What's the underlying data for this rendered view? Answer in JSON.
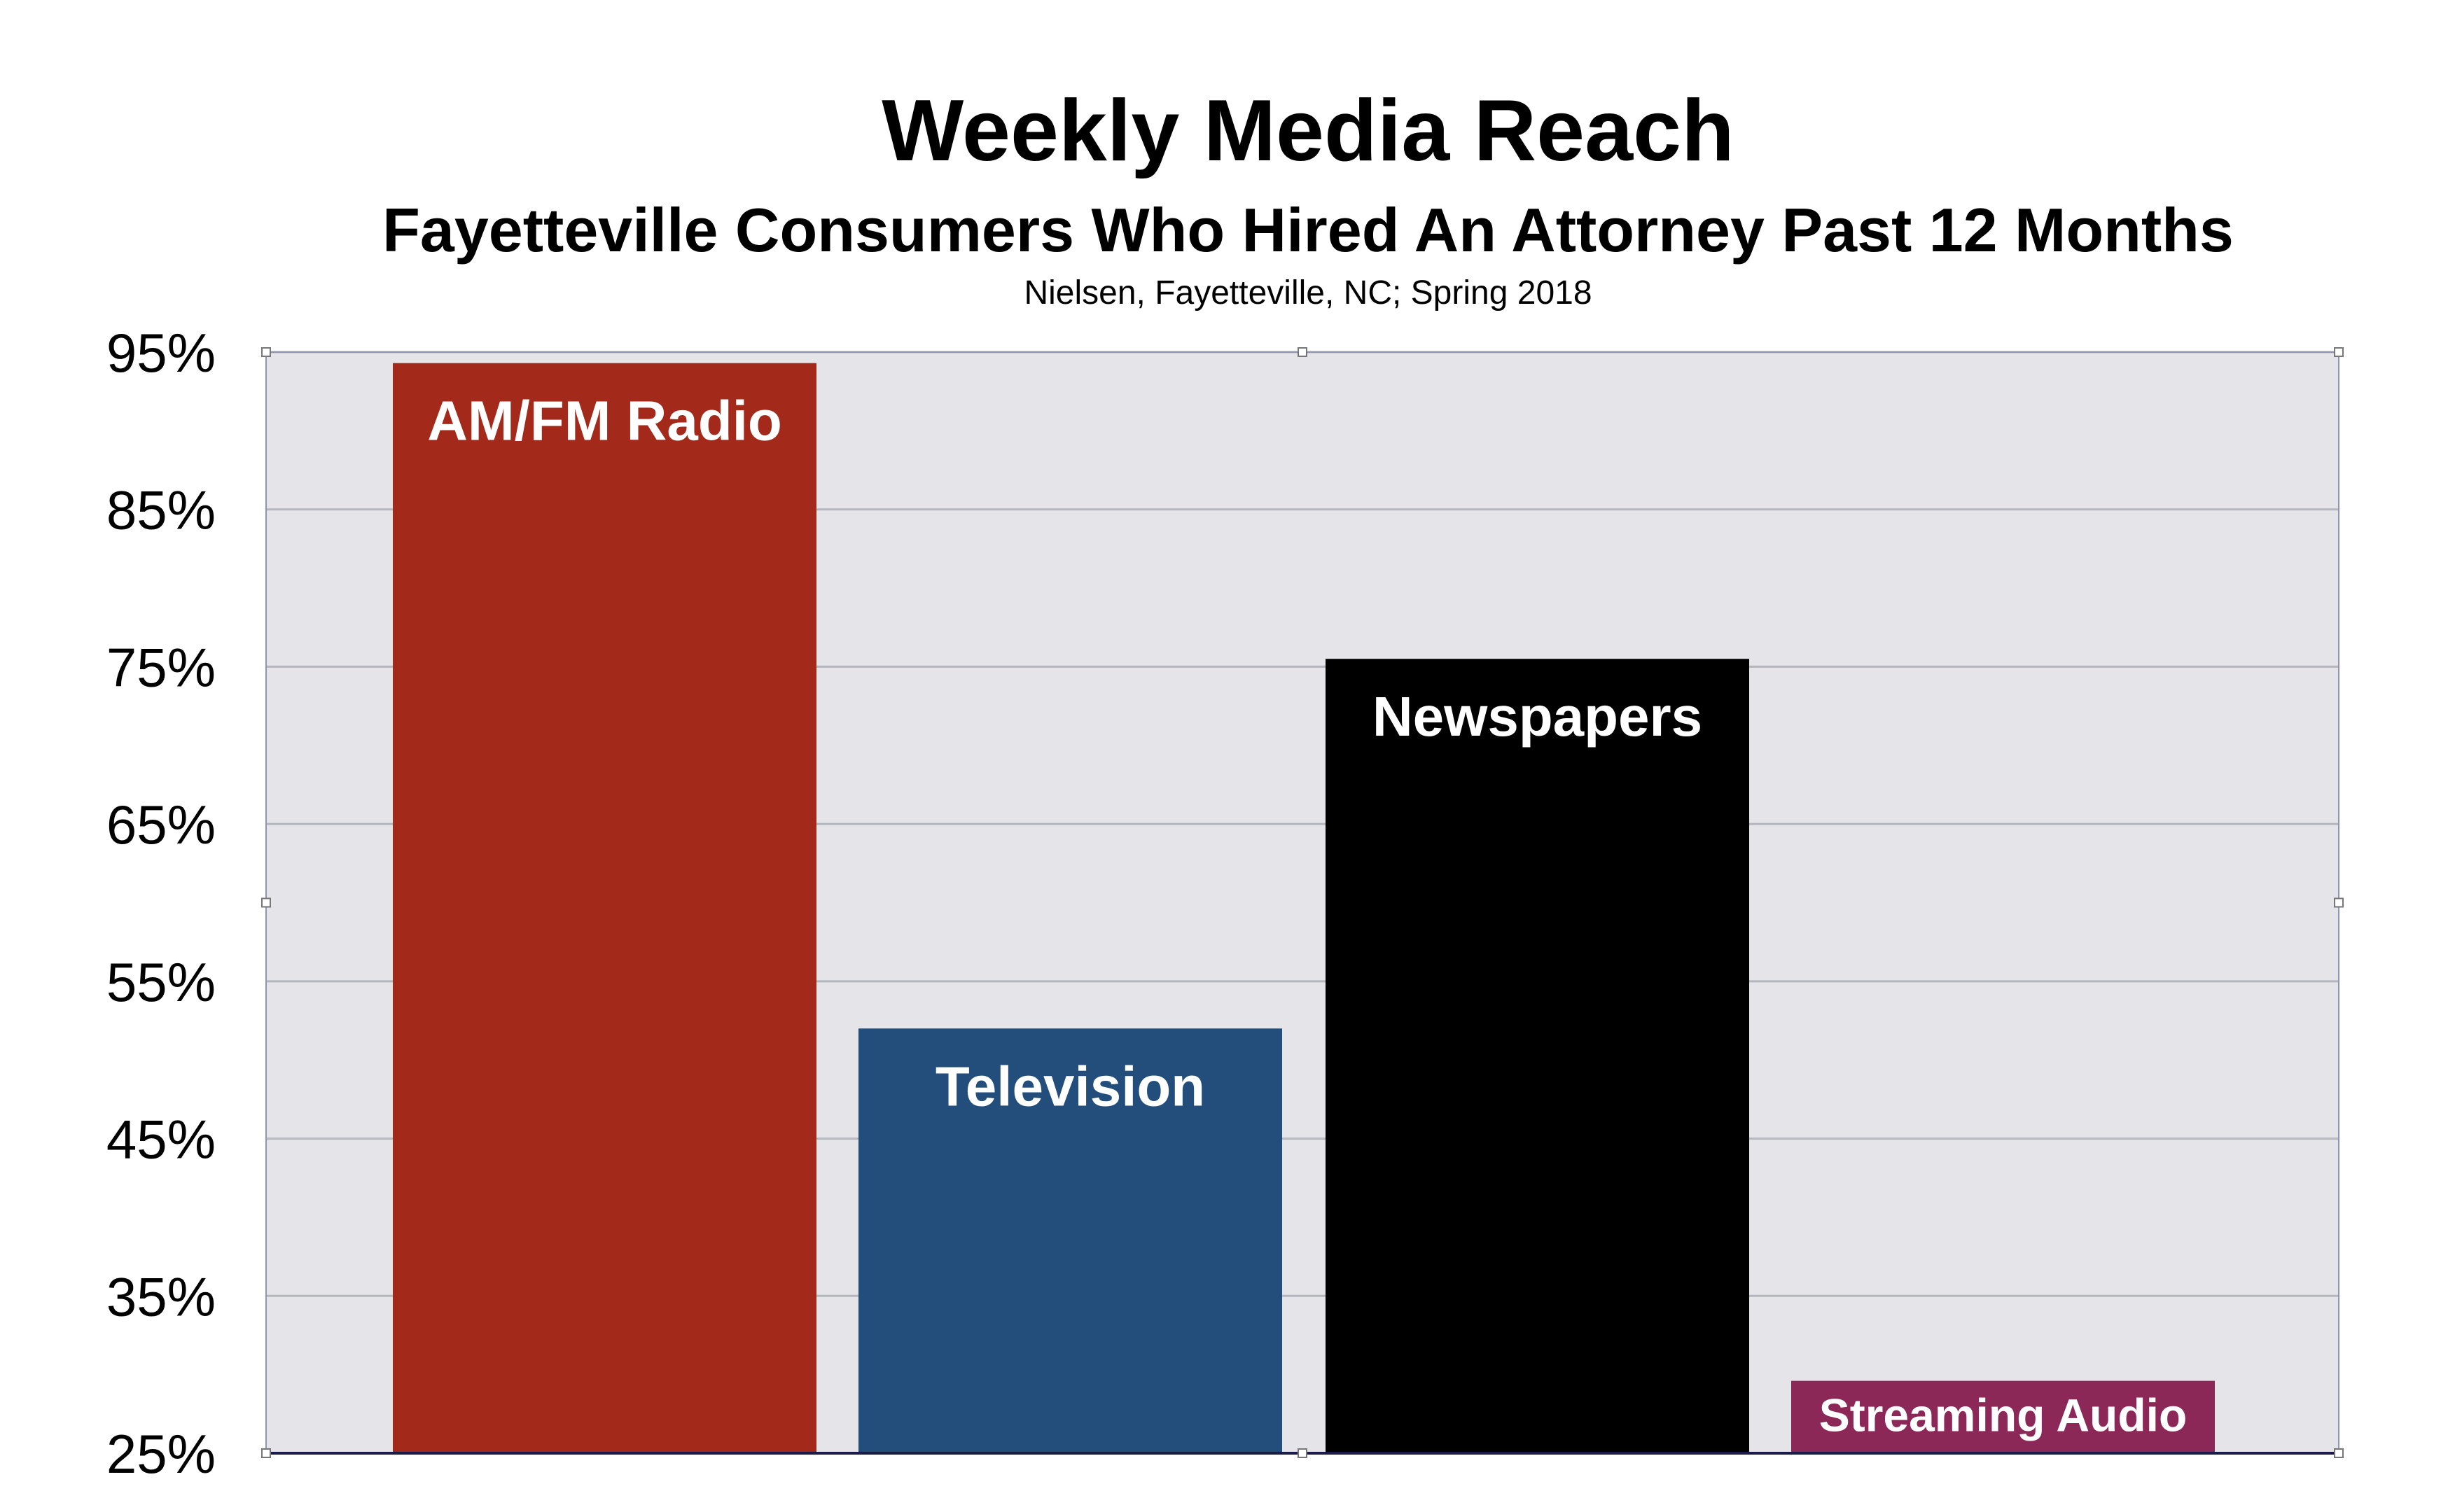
{
  "chart_data": {
    "type": "bar",
    "title": "Weekly Media Reach",
    "subtitle": "Fayetteville Consumers Who Hired An Attorney Past 12 Months",
    "source": "Nielsen, Fayetteville, NC; Spring 2018",
    "categories": [
      "AM/FM Radio",
      "Television",
      "Newspapers",
      "Streaming Audio"
    ],
    "values": [
      94.3,
      52.0,
      75.5,
      29.6
    ],
    "colors": [
      "#a3291b",
      "#234e7c",
      "#000000",
      "#8b2858"
    ],
    "label_color": "#ffffff",
    "yticks": [
      "95%",
      "85%",
      "75%",
      "65%",
      "55%",
      "45%",
      "35%",
      "25%"
    ],
    "ytick_values": [
      95,
      85,
      75,
      65,
      55,
      45,
      35,
      25
    ],
    "ylim": [
      25,
      95
    ],
    "xlabel": "",
    "ylabel": "",
    "grid": true,
    "plot_background": "#e5e4e8",
    "legend": "none"
  }
}
